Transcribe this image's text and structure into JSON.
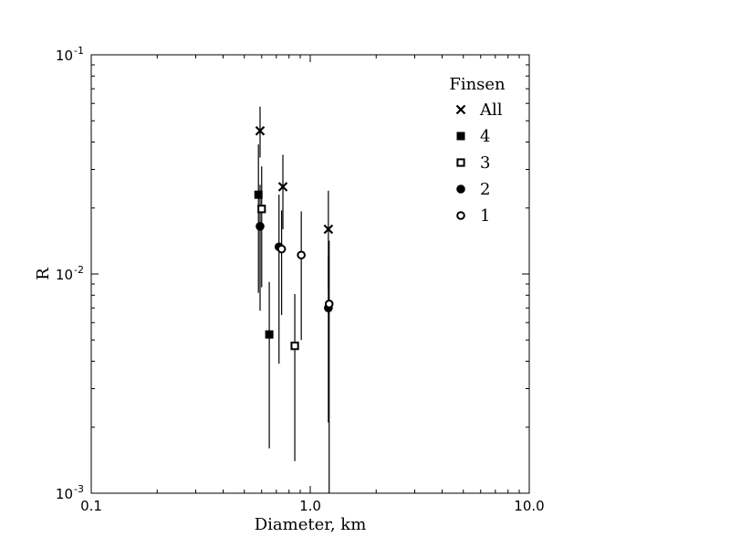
{
  "chart_data": {
    "type": "scatter",
    "xlabel": "Diameter, km",
    "ylabel": "R",
    "xscale": "log",
    "yscale": "log",
    "xlim": [
      0.1,
      10.0
    ],
    "ylim": [
      0.001,
      0.1
    ],
    "x_ticks": [
      {
        "value": 0.1,
        "label": "0.1"
      },
      {
        "value": 1.0,
        "label": "1.0"
      },
      {
        "value": 10.0,
        "label": "10.0"
      }
    ],
    "y_ticks": [
      {
        "value": 0.001,
        "base": "10",
        "exp": "-3"
      },
      {
        "value": 0.01,
        "base": "10",
        "exp": "-2"
      },
      {
        "value": 0.1,
        "base": "10",
        "exp": "-1"
      }
    ],
    "legend": {
      "title": "Finsen",
      "location": "top-right",
      "entries": [
        {
          "label": "All",
          "marker": "x"
        },
        {
          "label": "4",
          "marker": "filled-square"
        },
        {
          "label": "3",
          "marker": "open-square"
        },
        {
          "label": "2",
          "marker": "filled-circle"
        },
        {
          "label": "1",
          "marker": "open-circle"
        }
      ]
    },
    "series": [
      {
        "name": "All",
        "marker": "x",
        "points": [
          {
            "x": 0.59,
            "y": 0.045,
            "ylo": 0.034,
            "yhi": 0.058
          },
          {
            "x": 0.75,
            "y": 0.025,
            "ylo": 0.016,
            "yhi": 0.035
          },
          {
            "x": 1.21,
            "y": 0.016,
            "ylo": 0.0085,
            "yhi": 0.024
          }
        ]
      },
      {
        "name": "4",
        "marker": "filled-square",
        "points": [
          {
            "x": 0.58,
            "y": 0.023,
            "ylo": 0.0082,
            "yhi": 0.039
          },
          {
            "x": 0.65,
            "y": 0.0053,
            "ylo": 0.0016,
            "yhi": 0.0092
          }
        ]
      },
      {
        "name": "3",
        "marker": "open-square",
        "points": [
          {
            "x": 0.6,
            "y": 0.0198,
            "ylo": 0.0087,
            "yhi": 0.031
          },
          {
            "x": 0.85,
            "y": 0.0047,
            "ylo": 0.0014,
            "yhi": 0.0081
          }
        ]
      },
      {
        "name": "2",
        "marker": "filled-circle",
        "points": [
          {
            "x": 0.59,
            "y": 0.0165,
            "ylo": 0.0068,
            "yhi": 0.0255
          },
          {
            "x": 0.72,
            "y": 0.0133,
            "ylo": 0.0039,
            "yhi": 0.023
          },
          {
            "x": 1.21,
            "y": 0.007,
            "ylo": 0.0021,
            "yhi": 0.012
          }
        ]
      },
      {
        "name": "1",
        "marker": "open-circle",
        "points": [
          {
            "x": 0.74,
            "y": 0.013,
            "ylo": 0.0065,
            "yhi": 0.0195
          },
          {
            "x": 0.91,
            "y": 0.0122,
            "ylo": 0.005,
            "yhi": 0.0193
          },
          {
            "x": 1.22,
            "y": 0.0073,
            "ylo": 0.0009,
            "yhi": 0.0142
          }
        ]
      }
    ]
  }
}
